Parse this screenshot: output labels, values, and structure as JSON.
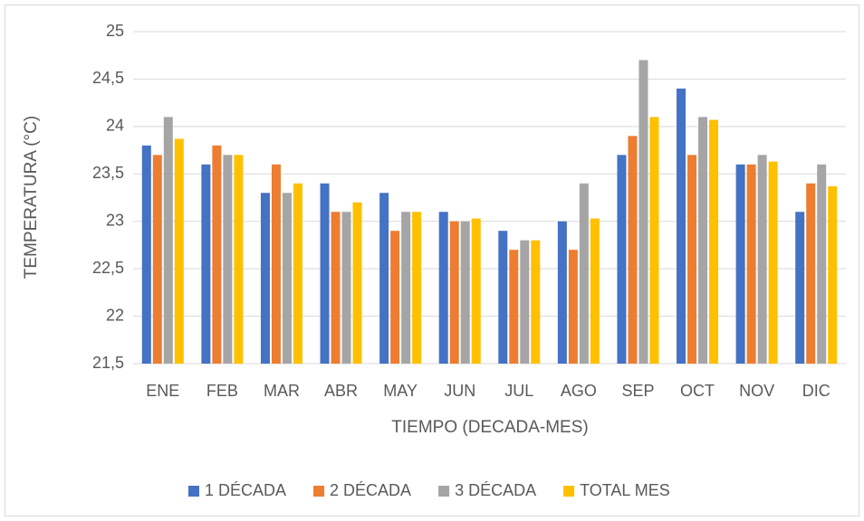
{
  "chart_data": {
    "type": "bar",
    "x_label": "TIEMPO (DECADA-MES)",
    "y_label": "TEMPERATURA (°C)",
    "categories": [
      "ENE",
      "FEB",
      "MAR",
      "ABR",
      "MAY",
      "JUN",
      "JUL",
      "AGO",
      "SEP",
      "OCT",
      "NOV",
      "DIC"
    ],
    "series": [
      {
        "name": "1 DÉCADA",
        "color": "#4472c4",
        "values": [
          23.8,
          23.6,
          23.3,
          23.4,
          23.3,
          23.1,
          22.9,
          23.0,
          23.7,
          24.4,
          23.6,
          23.1
        ]
      },
      {
        "name": "2 DÉCADA",
        "color": "#ed7d31",
        "values": [
          23.7,
          23.8,
          23.6,
          23.1,
          22.9,
          23.0,
          22.7,
          22.7,
          23.9,
          23.7,
          23.6,
          23.4
        ]
      },
      {
        "name": "3 DÉCADA",
        "color": "#a5a5a5",
        "values": [
          24.1,
          23.7,
          23.3,
          23.1,
          23.1,
          23.0,
          22.8,
          23.4,
          24.7,
          24.1,
          23.7,
          23.6
        ]
      },
      {
        "name": "TOTAL MES",
        "color": "#ffc000",
        "values": [
          23.87,
          23.7,
          23.4,
          23.2,
          23.1,
          23.03,
          22.8,
          23.03,
          24.1,
          24.07,
          23.63,
          23.37
        ]
      }
    ],
    "ylim": [
      21.5,
      25
    ],
    "yticks": [
      {
        "value": 21.5,
        "label": "21,5"
      },
      22,
      {
        "value": 22.5,
        "label": "22,5"
      },
      23,
      {
        "value": 23.5,
        "label": "23,5"
      },
      24,
      {
        "value": 24.5,
        "label": "24,5"
      },
      25
    ],
    "grid": true,
    "legend": "bottom"
  }
}
